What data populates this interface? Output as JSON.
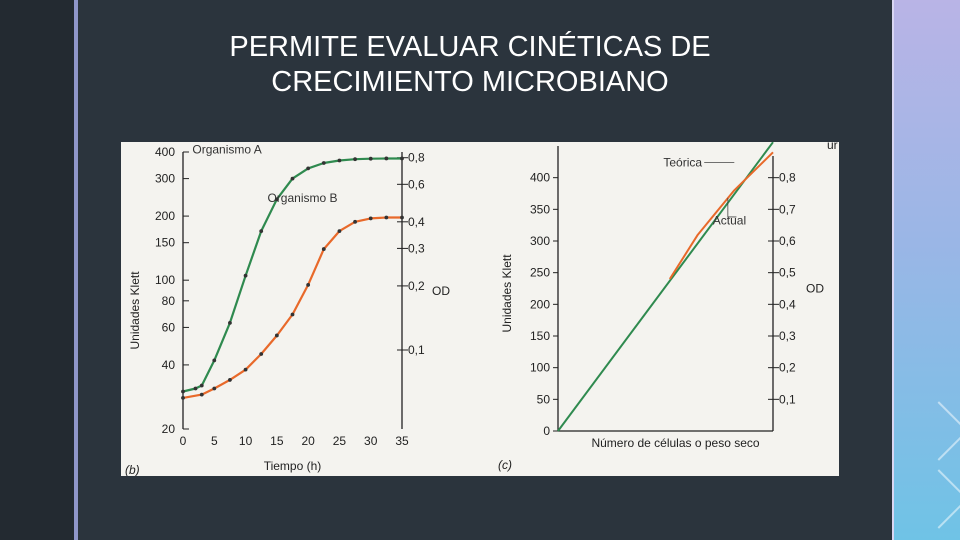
{
  "slide": {
    "title_line1": "PERMITE EVALUAR CINÉTICAS DE",
    "title_line2": "CRECIMIENTO MICROBIANO",
    "colors": {
      "background": "#2b343d",
      "accent_left": "#8f96c9",
      "accent_right": "#9ab6e6"
    }
  },
  "chart_data": [
    {
      "type": "line",
      "panel_label": "(b)",
      "xlabel": "Tiempo (h)",
      "ylabel": "Unidades Klett",
      "y2label": "OD",
      "x_ticks": [
        0,
        5,
        10,
        15,
        20,
        25,
        30,
        35
      ],
      "y_ticks": [
        20,
        40,
        60,
        80,
        100,
        150,
        200,
        300,
        400
      ],
      "y2_ticks": [
        "0,1",
        "0,2",
        "0,3",
        "0,4",
        "0,6",
        "0,8"
      ],
      "y_scale": "log",
      "xlim": [
        0,
        35
      ],
      "ylim": [
        20,
        400
      ],
      "series": [
        {
          "name": "Organismo A",
          "color": "#2f8a4f",
          "x": [
            0,
            2,
            3,
            5,
            7.5,
            10,
            12.5,
            15,
            17.5,
            20,
            22.5,
            25,
            27.5,
            30,
            32.5,
            35
          ],
          "y": [
            30,
            31,
            32,
            42,
            63,
            105,
            170,
            240,
            300,
            335,
            355,
            365,
            370,
            372,
            373,
            373
          ]
        },
        {
          "name": "Organismo B",
          "color": "#e8692a",
          "x": [
            0,
            3,
            5,
            7.5,
            10,
            12.5,
            15,
            17.5,
            20,
            22.5,
            25,
            27.5,
            30,
            32.5,
            35
          ],
          "y": [
            28,
            29,
            31,
            34,
            38,
            45,
            55,
            69,
            95,
            140,
            170,
            188,
            195,
            197,
            197
          ]
        }
      ]
    },
    {
      "type": "line",
      "panel_label": "(c)",
      "xlabel": "Número de células o peso seco",
      "ylabel": "Unidades Klett",
      "y2label": "OD",
      "y_ticks": [
        0,
        50,
        100,
        150,
        200,
        250,
        300,
        350,
        400
      ],
      "y2_ticks": [
        "0,1",
        "0,2",
        "0,3",
        "0,4",
        "0,5",
        "0,6",
        "0,7",
        "0,8"
      ],
      "ylim": [
        0,
        450
      ],
      "series": [
        {
          "name": "Teórica",
          "color": "#2f8a4f",
          "x": [
            0,
            10
          ],
          "y": [
            0,
            456
          ]
        },
        {
          "name": "Actual",
          "color": "#e8692a",
          "x": [
            5.2,
            6.5,
            8.2,
            10
          ],
          "y": [
            240,
            310,
            380,
            440
          ]
        }
      ],
      "corner_text": "ur"
    }
  ]
}
